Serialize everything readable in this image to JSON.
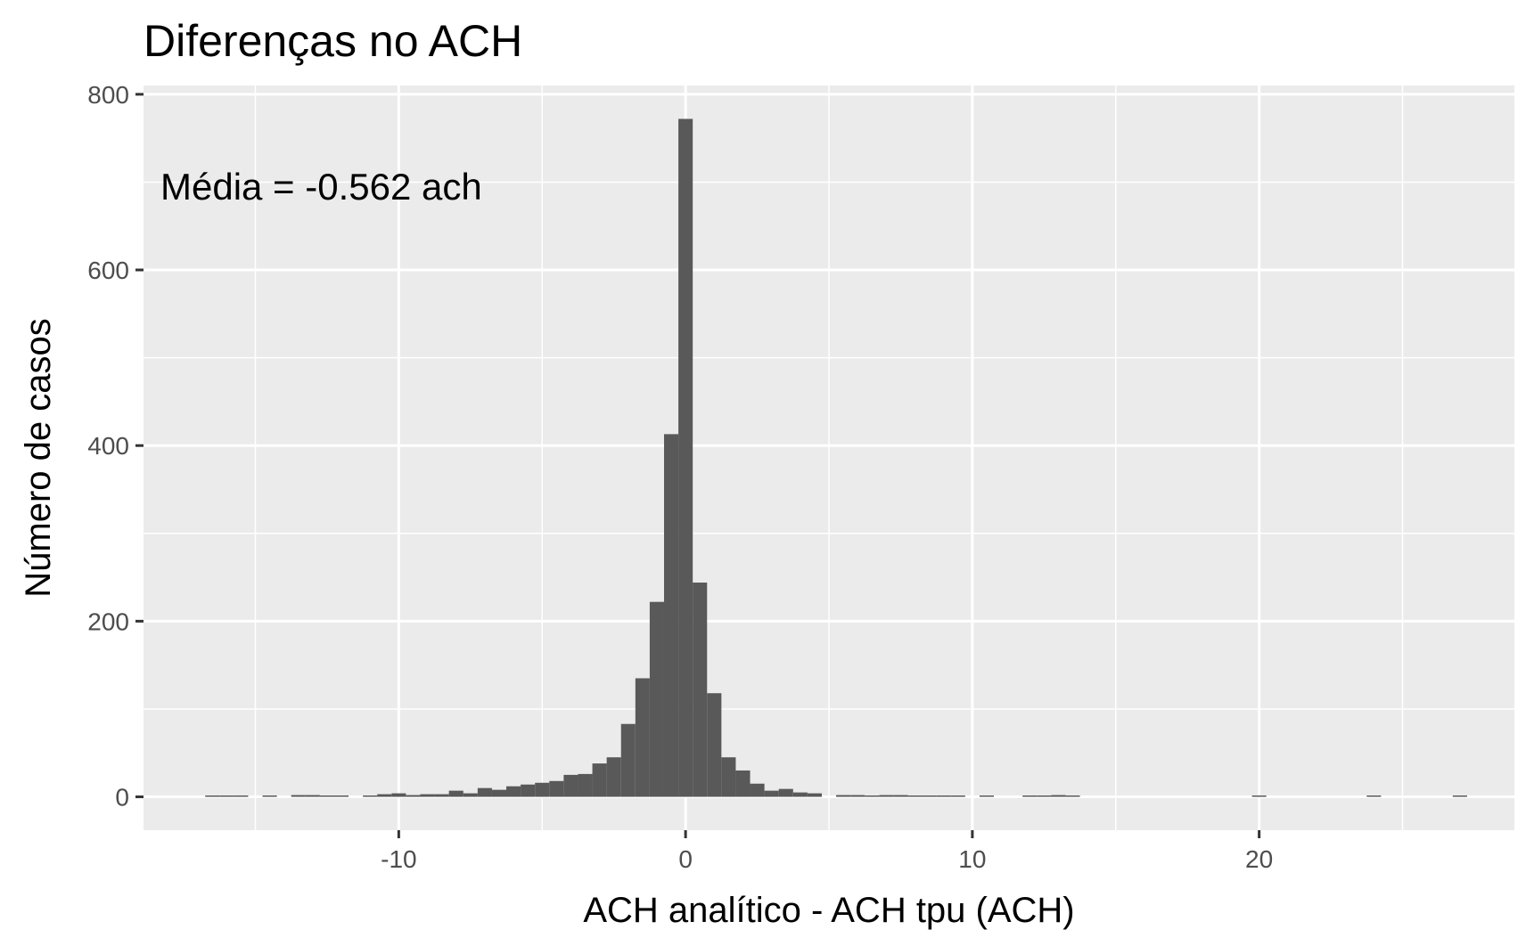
{
  "chart_data": {
    "type": "bar",
    "title": "Diferenças no ACH",
    "xlabel": "ACH analítico - ACH tpu (ACH)",
    "ylabel": "Número de casos",
    "annotation": "Média = -0.562 ach",
    "xlim": [
      -18.9,
      28.9
    ],
    "ylim": [
      -38,
      810
    ],
    "x_ticks": [
      -10,
      0,
      10,
      20
    ],
    "x_tick_labels": [
      "-10",
      "0",
      "10",
      "20"
    ],
    "y_ticks": [
      0,
      200,
      400,
      600,
      800
    ],
    "y_tick_labels": [
      "0",
      "200",
      "400",
      "600",
      "800"
    ],
    "grid": true,
    "bin_width": 0.5,
    "bins": [
      {
        "x": -16.5,
        "count": 1
      },
      {
        "x": -16.0,
        "count": 1
      },
      {
        "x": -15.5,
        "count": 1
      },
      {
        "x": -14.5,
        "count": 1
      },
      {
        "x": -13.5,
        "count": 2
      },
      {
        "x": -13.0,
        "count": 2
      },
      {
        "x": -12.5,
        "count": 1
      },
      {
        "x": -12.0,
        "count": 1
      },
      {
        "x": -11.0,
        "count": 1
      },
      {
        "x": -10.5,
        "count": 3
      },
      {
        "x": -10.0,
        "count": 4
      },
      {
        "x": -9.5,
        "count": 2
      },
      {
        "x": -9.0,
        "count": 3
      },
      {
        "x": -8.5,
        "count": 3
      },
      {
        "x": -8.0,
        "count": 7
      },
      {
        "x": -7.5,
        "count": 4
      },
      {
        "x": -7.0,
        "count": 10
      },
      {
        "x": -6.5,
        "count": 8
      },
      {
        "x": -6.0,
        "count": 12
      },
      {
        "x": -5.5,
        "count": 14
      },
      {
        "x": -5.0,
        "count": 16
      },
      {
        "x": -4.5,
        "count": 18
      },
      {
        "x": -4.0,
        "count": 25
      },
      {
        "x": -3.5,
        "count": 26
      },
      {
        "x": -3.0,
        "count": 38
      },
      {
        "x": -2.5,
        "count": 45
      },
      {
        "x": -2.0,
        "count": 83
      },
      {
        "x": -1.5,
        "count": 135
      },
      {
        "x": -1.0,
        "count": 222
      },
      {
        "x": -0.5,
        "count": 413
      },
      {
        "x": 0.0,
        "count": 772
      },
      {
        "x": 0.5,
        "count": 244
      },
      {
        "x": 1.0,
        "count": 118
      },
      {
        "x": 1.5,
        "count": 45
      },
      {
        "x": 2.0,
        "count": 30
      },
      {
        "x": 2.5,
        "count": 15
      },
      {
        "x": 3.0,
        "count": 7
      },
      {
        "x": 3.5,
        "count": 9
      },
      {
        "x": 4.0,
        "count": 5
      },
      {
        "x": 4.5,
        "count": 4
      },
      {
        "x": 5.5,
        "count": 2
      },
      {
        "x": 6.0,
        "count": 2
      },
      {
        "x": 6.5,
        "count": 1
      },
      {
        "x": 7.0,
        "count": 2
      },
      {
        "x": 7.5,
        "count": 2
      },
      {
        "x": 8.0,
        "count": 1
      },
      {
        "x": 8.5,
        "count": 1
      },
      {
        "x": 9.0,
        "count": 1
      },
      {
        "x": 9.5,
        "count": 1
      },
      {
        "x": 10.5,
        "count": 1
      },
      {
        "x": 12.0,
        "count": 1
      },
      {
        "x": 12.5,
        "count": 1
      },
      {
        "x": 13.0,
        "count": 2
      },
      {
        "x": 13.5,
        "count": 1
      },
      {
        "x": 20.0,
        "count": 1
      },
      {
        "x": 24.0,
        "count": 1
      },
      {
        "x": 27.0,
        "count": 1
      }
    ]
  },
  "colors": {
    "panel": "#ebebeb",
    "grid": "#ffffff",
    "bar": "#595959",
    "tick_text": "#4d4d4d",
    "text": "#000000"
  }
}
